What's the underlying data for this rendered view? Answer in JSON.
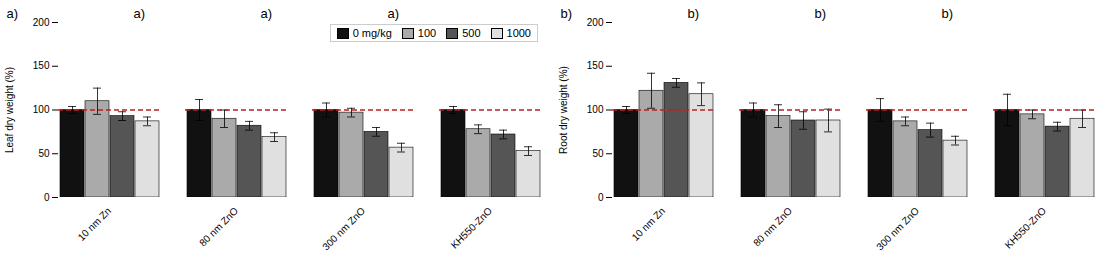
{
  "chart_data": [
    {
      "type": "bar",
      "title": "a)",
      "categories": [
        "10 nm Zn",
        "80 nm ZnO",
        "300 nm ZnO",
        "KH550-ZnO"
      ],
      "series": [
        {
          "name": "0 mg/kg",
          "color": "#111111",
          "values": [
            100,
            100,
            100,
            100
          ],
          "errors": [
            4,
            12,
            8,
            4
          ]
        },
        {
          "name": "100",
          "color": "#aaaaaa",
          "values": [
            110,
            90,
            97,
            78
          ],
          "errors": [
            15,
            10,
            5,
            5
          ]
        },
        {
          "name": "500",
          "color": "#555555",
          "values": [
            93,
            82,
            75,
            72
          ],
          "errors": [
            5,
            5,
            5,
            5
          ]
        },
        {
          "name": "1000",
          "color": "#e0e0e0",
          "values": [
            87,
            69,
            57,
            53
          ],
          "errors": [
            5,
            5,
            5,
            5
          ]
        }
      ],
      "ylabel": "Leaf dry weight (%)",
      "ylim": [
        0,
        200
      ],
      "yticks": [
        0,
        50,
        100,
        150,
        200
      ],
      "reference_line": {
        "y": 100,
        "color": "#bb2222"
      },
      "grid": false,
      "legend": "upper right"
    },
    {
      "type": "bar",
      "title": "b)",
      "categories": [
        "10 nm Zn",
        "80 nm ZnO",
        "300 nm ZnO",
        "KH550-ZnO"
      ],
      "series": [
        {
          "name": "0 mg/kg",
          "color": "#111111",
          "values": [
            100,
            100,
            100,
            100
          ],
          "errors": [
            4,
            8,
            13,
            18
          ]
        },
        {
          "name": "100",
          "color": "#aaaaaa",
          "values": [
            122,
            93,
            87,
            95
          ],
          "errors": [
            20,
            13,
            5,
            5
          ]
        },
        {
          "name": "500",
          "color": "#555555",
          "values": [
            131,
            88,
            77,
            81
          ],
          "errors": [
            5,
            10,
            8,
            5
          ]
        },
        {
          "name": "1000",
          "color": "#e0e0e0",
          "values": [
            118,
            88,
            65,
            90
          ],
          "errors": [
            13,
            13,
            5,
            10
          ]
        }
      ],
      "ylabel": "Root dry weight (%)",
      "ylim": [
        0,
        200
      ],
      "yticks": [
        0,
        50,
        100,
        150,
        200
      ],
      "reference_line": {
        "y": 100,
        "color": "#bb2222"
      },
      "grid": false
    }
  ]
}
